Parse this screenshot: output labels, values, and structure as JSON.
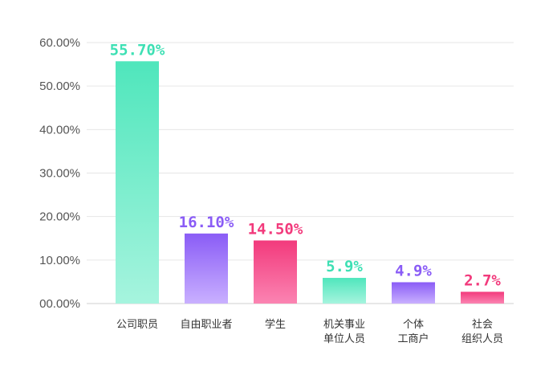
{
  "chart_data": {
    "type": "bar",
    "categories": [
      "公司职员",
      "自由职业者",
      "学生",
      "机关事业\n单位人员",
      "个体\n工商户",
      "社会\n组织人员"
    ],
    "values": [
      55.7,
      16.1,
      14.5,
      5.9,
      4.9,
      2.7
    ],
    "value_labels": [
      "55.70%",
      "16.10%",
      "14.50%",
      "5.9%",
      "4.9%",
      "2.7%"
    ],
    "yticks": [
      "00.00%",
      "10.00%",
      "20.00%",
      "30.00%",
      "40.00%",
      "50.00%",
      "60.00%"
    ],
    "ytick_values": [
      0,
      10,
      20,
      30,
      40,
      50,
      60
    ],
    "ylim": [
      0,
      60
    ],
    "grid": true,
    "legend": "none",
    "bar_colors": [
      {
        "top": "#4fe6bc",
        "bottom": "#a6f4de",
        "label": "#3ee0b4"
      },
      {
        "top": "#8a5cf6",
        "bottom": "#c9b0ff",
        "label": "#8a5cf6"
      },
      {
        "top": "#f23a7c",
        "bottom": "#fb84b2",
        "label": "#f23a7c"
      },
      {
        "top": "#4fe6bc",
        "bottom": "#a6f4de",
        "label": "#3ee0b4"
      },
      {
        "top": "#8a5cf6",
        "bottom": "#c9b0ff",
        "label": "#8a5cf6"
      },
      {
        "top": "#f23a7c",
        "bottom": "#fb84b2",
        "label": "#f23a7c"
      }
    ]
  }
}
